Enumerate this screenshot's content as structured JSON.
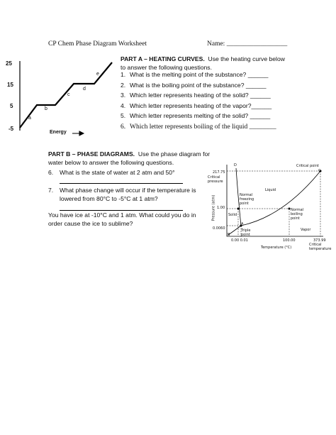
{
  "header": {
    "title": "CP Chem Phase Diagram Worksheet",
    "name": "Name: __________________"
  },
  "heating_curve": {
    "yticks": [
      "25",
      "15",
      "5",
      "-5"
    ],
    "segments": [
      "a",
      "b",
      "c",
      "d",
      "e"
    ],
    "xlabel": "Energy"
  },
  "part_a": {
    "heading": "PART A – HEATING CURVES.",
    "intro": "Use the heating curve below to answer the following questions.",
    "questions": [
      {
        "number": "1.",
        "text": "What is the melting point of the substance? ______"
      },
      {
        "number": "2.",
        "text": "What is the boiling point of the substance? ______"
      },
      {
        "number": "3.",
        "text": "Which letter represents heating of the solid? ______"
      },
      {
        "number": "4.",
        "text": "Which letter represents heating of the vapor?______"
      },
      {
        "number": "5.",
        "text": "Which letter represents melting of the solid? ______"
      },
      {
        "number": "6.",
        "text": "Which letter represents boiling of the liquid ________"
      }
    ]
  },
  "part_b": {
    "heading": "PART B – PHASE DIAGRAMS.",
    "intro": "Use the phase diagram for water below to answer the following questions.",
    "questions": [
      {
        "number": "6.",
        "text": "What is the state of water at 2 atm and 50°"
      },
      {
        "number": "7.",
        "text": "What phase change will occur if the temperature is lowered from 80°C to -5°C at 1 atm?"
      }
    ],
    "final": "You have ice at -10°C and 1 atm.  What could you do in order cause the ice to sublime?"
  },
  "phase_diagram": {
    "labels": {
      "D": "D",
      "critical_point": "Critical point",
      "C": "C",
      "p_critical": "217.75",
      "critical_pressure": "Critical pressure",
      "liquid": "Liquid",
      "freezing": "Normal freezing point",
      "ylabel": "Pressure (atm)",
      "p_one": "1.00",
      "solid": "Solid",
      "boiling": "Normal boiling point",
      "A": "A",
      "p_triple": "0.0060",
      "triple": "Triple point",
      "vapor": "Vapor",
      "B": "B",
      "t_zero": "0.00 0.01",
      "t_hundred": "100.00",
      "t_critical": "373.99",
      "critical_temperature": "Critical temperature",
      "xlabel": "Temperature (°C)"
    }
  }
}
